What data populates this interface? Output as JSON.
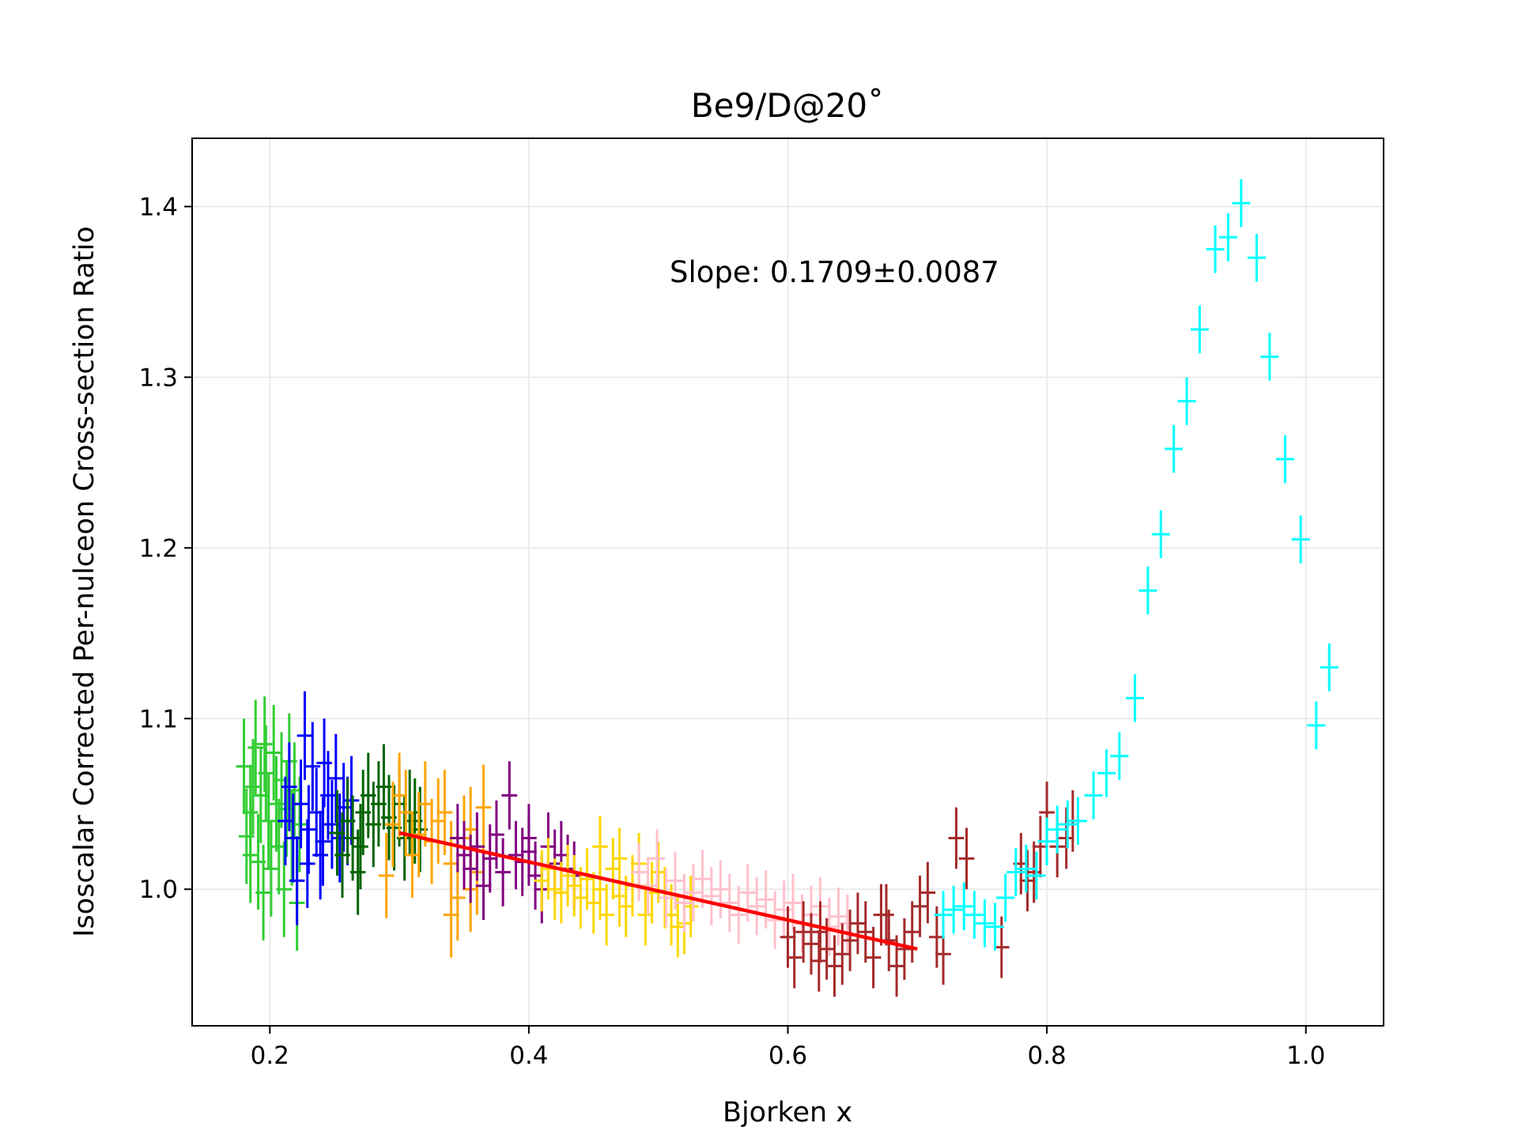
{
  "chart_data": {
    "type": "scatter",
    "title": "Be9/D@20˚",
    "xlabel": "Bjorken x",
    "ylabel": "Isoscalar Corrected Per-nulceon Cross-section Ratio",
    "xlim": [
      0.14,
      1.06
    ],
    "ylim": [
      0.92,
      1.44
    ],
    "xticks": [
      "0.2",
      "0.4",
      "0.6",
      "0.8",
      "1.0"
    ],
    "yticks": [
      "1.0",
      "1.1",
      "1.2",
      "1.3",
      "1.4"
    ],
    "grid": true,
    "legend": "none",
    "annotation": "Slope: 0.1709±0.0087",
    "fit": {
      "color": "#ff0000",
      "x": [
        0.3,
        0.7
      ],
      "y": [
        1.033,
        0.965
      ]
    },
    "series": [
      {
        "color": "#32cd32",
        "xerr": 0.006,
        "yerr": 0.028,
        "points": [
          [
            0.18,
            1.072
          ],
          [
            0.182,
            1.031
          ],
          [
            0.185,
            1.045
          ],
          [
            0.187,
            1.06
          ],
          [
            0.189,
            1.083
          ],
          [
            0.191,
            1.016
          ],
          [
            0.193,
            1.055
          ],
          [
            0.195,
            0.998
          ],
          [
            0.197,
            1.068
          ],
          [
            0.199,
            1.04
          ],
          [
            0.201,
            1.012
          ],
          [
            0.203,
            1.08
          ],
          [
            0.205,
            1.05
          ],
          [
            0.207,
            1.025
          ],
          [
            0.209,
            1.064
          ],
          [
            0.211,
            1.0
          ],
          [
            0.213,
            1.047
          ],
          [
            0.215,
            1.075
          ],
          [
            0.217,
            1.03
          ],
          [
            0.219,
            1.058
          ],
          [
            0.221,
            0.992
          ],
          [
            0.223,
            1.038
          ],
          [
            0.185,
            1.02
          ],
          [
            0.196,
            1.085
          ]
        ]
      },
      {
        "color": "#0000ff",
        "xerr": 0.006,
        "yerr": 0.026,
        "points": [
          [
            0.212,
            1.04
          ],
          [
            0.215,
            1.06
          ],
          [
            0.218,
            1.03
          ],
          [
            0.221,
            1.005
          ],
          [
            0.224,
            1.05
          ],
          [
            0.227,
            1.09
          ],
          [
            0.23,
            1.035
          ],
          [
            0.233,
            1.072
          ],
          [
            0.236,
            1.045
          ],
          [
            0.239,
            1.02
          ],
          [
            0.242,
            1.074
          ],
          [
            0.245,
            1.055
          ],
          [
            0.248,
            1.038
          ],
          [
            0.251,
            1.065
          ],
          [
            0.254,
            1.03
          ],
          [
            0.257,
            1.048
          ],
          [
            0.26,
            1.04
          ],
          [
            0.263,
            1.052
          ],
          [
            0.229,
            1.015
          ],
          [
            0.241,
            1.028
          ]
        ]
      },
      {
        "color": "#006400",
        "xerr": 0.006,
        "yerr": 0.025,
        "points": [
          [
            0.252,
            1.033
          ],
          [
            0.256,
            1.02
          ],
          [
            0.26,
            1.04
          ],
          [
            0.264,
            1.03
          ],
          [
            0.268,
            1.01
          ],
          [
            0.272,
            1.045
          ],
          [
            0.276,
            1.055
          ],
          [
            0.28,
            1.038
          ],
          [
            0.284,
            1.05
          ],
          [
            0.288,
            1.06
          ],
          [
            0.292,
            1.042
          ],
          [
            0.296,
            1.036
          ],
          [
            0.3,
            1.05
          ],
          [
            0.304,
            1.03
          ],
          [
            0.308,
            1.045
          ],
          [
            0.312,
            1.04
          ],
          [
            0.316,
            1.035
          ],
          [
            0.27,
            1.025
          ]
        ]
      },
      {
        "color": "#ffa500",
        "xerr": 0.006,
        "yerr": 0.025,
        "points": [
          [
            0.29,
            1.008
          ],
          [
            0.295,
            1.038
          ],
          [
            0.3,
            1.055
          ],
          [
            0.305,
            1.045
          ],
          [
            0.31,
            1.02
          ],
          [
            0.315,
            1.032
          ],
          [
            0.32,
            1.05
          ],
          [
            0.325,
            1.028
          ],
          [
            0.33,
            1.04
          ],
          [
            0.335,
            1.045
          ],
          [
            0.34,
            1.015
          ],
          [
            0.345,
            0.995
          ],
          [
            0.35,
            1.03
          ],
          [
            0.355,
            1.0
          ],
          [
            0.36,
            1.01
          ],
          [
            0.365,
            1.048
          ],
          [
            0.34,
            0.985
          ],
          [
            0.355,
            1.035
          ]
        ]
      },
      {
        "color": "#800080",
        "xerr": 0.006,
        "yerr": 0.02,
        "points": [
          [
            0.345,
            1.03
          ],
          [
            0.35,
            1.02
          ],
          [
            0.355,
            1.012
          ],
          [
            0.36,
            1.025
          ],
          [
            0.365,
            1.002
          ],
          [
            0.37,
            1.018
          ],
          [
            0.375,
            1.032
          ],
          [
            0.38,
            1.01
          ],
          [
            0.385,
            1.055
          ],
          [
            0.39,
            1.02
          ],
          [
            0.395,
            1.016
          ],
          [
            0.4,
            1.022
          ],
          [
            0.405,
            1.008
          ],
          [
            0.41,
            1.0
          ],
          [
            0.415,
            1.025
          ],
          [
            0.42,
            1.015
          ],
          [
            0.425,
            1.02
          ],
          [
            0.43,
            1.012
          ],
          [
            0.4,
            1.03
          ],
          [
            0.435,
            1.008
          ]
        ]
      },
      {
        "color": "#ffd700",
        "xerr": 0.006,
        "yerr": 0.018,
        "points": [
          [
            0.41,
            1.005
          ],
          [
            0.415,
            1.012
          ],
          [
            0.42,
            1.0
          ],
          [
            0.425,
            0.998
          ],
          [
            0.43,
            1.008
          ],
          [
            0.435,
            1.002
          ],
          [
            0.44,
            0.995
          ],
          [
            0.445,
            1.006
          ],
          [
            0.45,
            0.992
          ],
          [
            0.455,
            1.0
          ],
          [
            0.46,
            0.985
          ],
          [
            0.465,
            1.012
          ],
          [
            0.47,
            0.996
          ],
          [
            0.475,
            0.99
          ],
          [
            0.48,
            1.002
          ],
          [
            0.485,
            1.015
          ],
          [
            0.49,
            0.985
          ],
          [
            0.495,
            0.998
          ],
          [
            0.5,
            1.01
          ],
          [
            0.505,
            0.995
          ],
          [
            0.51,
            0.985
          ],
          [
            0.515,
            0.978
          ],
          [
            0.52,
            0.98
          ],
          [
            0.525,
            0.99
          ],
          [
            0.455,
            1.025
          ],
          [
            0.47,
            1.018
          ]
        ]
      },
      {
        "color": "#ffc0cb",
        "xerr": 0.006,
        "yerr": 0.017,
        "points": [
          [
            0.485,
            1.01
          ],
          [
            0.492,
            1.002
          ],
          [
            0.499,
            1.018
          ],
          [
            0.506,
            0.995
          ],
          [
            0.513,
            1.005
          ],
          [
            0.52,
            0.992
          ],
          [
            0.527,
            0.998
          ],
          [
            0.534,
            1.006
          ],
          [
            0.541,
            0.996
          ],
          [
            0.548,
            1.0
          ],
          [
            0.555,
            0.992
          ],
          [
            0.562,
            0.985
          ],
          [
            0.569,
            0.998
          ],
          [
            0.576,
            0.99
          ],
          [
            0.583,
            0.994
          ],
          [
            0.59,
            0.982
          ],
          [
            0.597,
            0.988
          ],
          [
            0.604,
            0.992
          ],
          [
            0.611,
            0.98
          ],
          [
            0.618,
            0.985
          ],
          [
            0.625,
            0.99
          ],
          [
            0.632,
            0.978
          ],
          [
            0.639,
            0.984
          ],
          [
            0.646,
            0.98
          ]
        ]
      },
      {
        "color": "#a52a2a",
        "xerr": 0.006,
        "yerr": 0.018,
        "points": [
          [
            0.6,
            0.972
          ],
          [
            0.605,
            0.96
          ],
          [
            0.612,
            0.975
          ],
          [
            0.618,
            0.968
          ],
          [
            0.624,
            0.958
          ],
          [
            0.63,
            0.965
          ],
          [
            0.636,
            0.955
          ],
          [
            0.642,
            0.962
          ],
          [
            0.648,
            0.97
          ],
          [
            0.654,
            0.98
          ],
          [
            0.66,
            0.975
          ],
          [
            0.666,
            0.96
          ],
          [
            0.672,
            0.985
          ],
          [
            0.678,
            0.97
          ],
          [
            0.684,
            0.955
          ],
          [
            0.69,
            0.965
          ],
          [
            0.696,
            0.975
          ],
          [
            0.702,
            0.99
          ],
          [
            0.708,
            0.998
          ],
          [
            0.715,
            0.972
          ],
          [
            0.72,
            0.962
          ],
          [
            0.78,
            1.015
          ],
          [
            0.785,
            1.005
          ],
          [
            0.79,
            1.01
          ],
          [
            0.795,
            1.025
          ],
          [
            0.8,
            1.045
          ],
          [
            0.808,
            1.025
          ],
          [
            0.815,
            1.03
          ],
          [
            0.82,
            1.04
          ],
          [
            0.73,
            1.03
          ],
          [
            0.738,
            1.018
          ],
          [
            0.765,
            0.966
          ],
          [
            0.676,
            0.985
          ],
          [
            0.625,
            0.975
          ]
        ]
      },
      {
        "color": "#00ffff",
        "xerr": 0.007,
        "yerr": 0.014,
        "points": [
          [
            0.72,
            0.985
          ],
          [
            0.728,
            0.988
          ],
          [
            0.736,
            0.99
          ],
          [
            0.744,
            0.985
          ],
          [
            0.752,
            0.98
          ],
          [
            0.76,
            0.978
          ],
          [
            0.768,
            0.995
          ],
          [
            0.776,
            1.01
          ],
          [
            0.784,
            1.012
          ],
          [
            0.792,
            1.008
          ],
          [
            0.8,
            1.028
          ],
          [
            0.808,
            1.035
          ],
          [
            0.816,
            1.038
          ],
          [
            0.824,
            1.04
          ],
          [
            0.836,
            1.055
          ],
          [
            0.846,
            1.068
          ],
          [
            0.856,
            1.078
          ],
          [
            0.868,
            1.112
          ],
          [
            0.878,
            1.175
          ],
          [
            0.888,
            1.208
          ],
          [
            0.898,
            1.258
          ],
          [
            0.908,
            1.286
          ],
          [
            0.918,
            1.328
          ],
          [
            0.93,
            1.375
          ],
          [
            0.94,
            1.382
          ],
          [
            0.95,
            1.402
          ],
          [
            0.962,
            1.37
          ],
          [
            0.972,
            1.312
          ],
          [
            0.984,
            1.252
          ],
          [
            0.996,
            1.205
          ],
          [
            1.008,
            1.096
          ],
          [
            1.018,
            1.13
          ]
        ]
      }
    ]
  }
}
